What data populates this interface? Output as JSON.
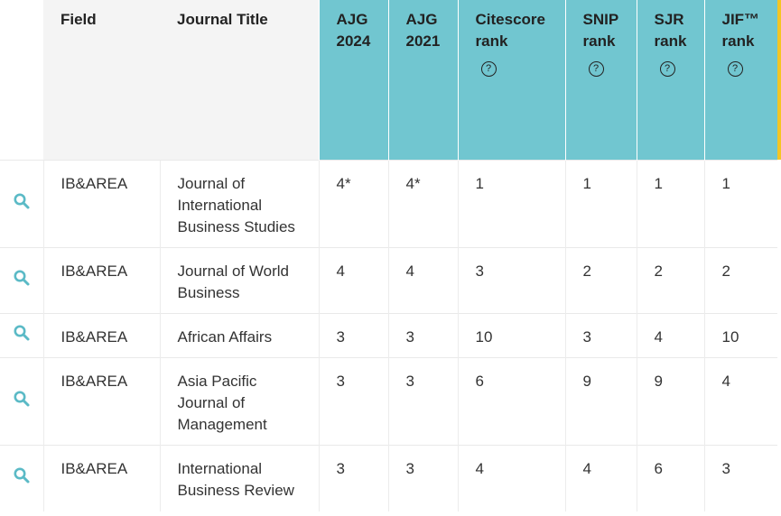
{
  "columns": {
    "field": "Field",
    "journal_title": "Journal Title",
    "ajg2024_line1": "AJG",
    "ajg2024_line2": "2024",
    "ajg2021_line1": "AJG",
    "ajg2021_line2": "2021",
    "citescore_line1": "Citescore",
    "citescore_line2": "rank",
    "snip_line1": "SNIP",
    "snip_line2": "rank",
    "sjr_line1": "SJR",
    "sjr_line2": "rank",
    "jif_line1": "JIF™",
    "jif_line2": "rank",
    "help_glyph": "?"
  },
  "rows": [
    {
      "field": "IB&AREA",
      "title": "Journal of International Business Studies",
      "ajg2024": "4*",
      "ajg2021": "4*",
      "citescore": "1",
      "snip": "1",
      "sjr": "1",
      "jif": "1"
    },
    {
      "field": "IB&AREA",
      "title": "Journal of World Business",
      "ajg2024": "4",
      "ajg2021": "4",
      "citescore": "3",
      "snip": "2",
      "sjr": "2",
      "jif": "2"
    },
    {
      "field": "IB&AREA",
      "title": "African Affairs",
      "ajg2024": "3",
      "ajg2021": "3",
      "citescore": "10",
      "snip": "3",
      "sjr": "4",
      "jif": "10"
    },
    {
      "field": "IB&AREA",
      "title": "Asia Pacific Journal of Management",
      "ajg2024": "3",
      "ajg2021": "3",
      "citescore": "6",
      "snip": "9",
      "sjr": "9",
      "jif": "4"
    },
    {
      "field": "IB&AREA",
      "title": "International Business Review",
      "ajg2024": "3",
      "ajg2021": "3",
      "citescore": "4",
      "snip": "4",
      "sjr": "6",
      "jif": "3"
    }
  ],
  "colors": {
    "header_metric_bg": "#71c6d0",
    "icon": "#5bbac6",
    "accent_bar": "#f4c524"
  }
}
